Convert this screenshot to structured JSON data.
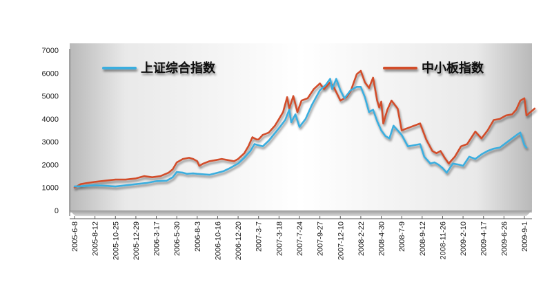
{
  "chart_data": {
    "type": "line",
    "ylim": [
      0,
      7000
    ],
    "y_ticks": [
      "0",
      "1000",
      "2000",
      "3000",
      "4000",
      "5000",
      "6000",
      "7000"
    ],
    "x_tick_labels": [
      "2005-6-8",
      "2005-8-12",
      "2005-10-25",
      "2005-12-29",
      "2006-3-17",
      "2006-5-30",
      "2006-8-3",
      "2006-10-16",
      "2006-12-20",
      "2007-3-7",
      "2007-3-18",
      "2007-7-24",
      "2007-9-27",
      "2007-12-10",
      "2008-2-22",
      "2008-4-30",
      "2008-7-9",
      "2008-9-12",
      "2008-11-26",
      "2009-2-10",
      "2009-4-17",
      "2009-6-26",
      "2009-9-1"
    ],
    "grid": false,
    "legend_position": "top",
    "series": [
      {
        "name": "上证综合指数",
        "color": "#3aaedf",
        "points": [
          [
            0,
            1050
          ],
          [
            0.3,
            1060
          ],
          [
            0.6,
            1080
          ],
          [
            1,
            1100
          ],
          [
            1.5,
            1080
          ],
          [
            2,
            1050
          ],
          [
            2.5,
            1100
          ],
          [
            3,
            1150
          ],
          [
            3.5,
            1200
          ],
          [
            4,
            1280
          ],
          [
            4.5,
            1300
          ],
          [
            4.8,
            1450
          ],
          [
            5,
            1680
          ],
          [
            5.3,
            1650
          ],
          [
            5.5,
            1600
          ],
          [
            5.8,
            1620
          ],
          [
            6,
            1600
          ],
          [
            6.3,
            1580
          ],
          [
            6.6,
            1560
          ],
          [
            7,
            1650
          ],
          [
            7.3,
            1720
          ],
          [
            7.6,
            1850
          ],
          [
            8,
            2050
          ],
          [
            8.3,
            2300
          ],
          [
            8.6,
            2600
          ],
          [
            8.8,
            2900
          ],
          [
            9,
            2850
          ],
          [
            9.2,
            2800
          ],
          [
            9.5,
            3050
          ],
          [
            10,
            3600
          ],
          [
            10.3,
            3950
          ],
          [
            10.5,
            4400
          ],
          [
            10.6,
            3850
          ],
          [
            10.8,
            4200
          ],
          [
            11,
            3650
          ],
          [
            11.3,
            4000
          ],
          [
            11.6,
            4600
          ],
          [
            12,
            5250
          ],
          [
            12.3,
            5500
          ],
          [
            12.5,
            5750
          ],
          [
            12.6,
            5300
          ],
          [
            12.8,
            5750
          ],
          [
            13,
            5250
          ],
          [
            13.2,
            4900
          ],
          [
            13.5,
            5250
          ],
          [
            13.8,
            5400
          ],
          [
            14,
            5400
          ],
          [
            14.2,
            4950
          ],
          [
            14.4,
            4300
          ],
          [
            14.6,
            4400
          ],
          [
            14.8,
            3900
          ],
          [
            15,
            3500
          ],
          [
            15.2,
            3250
          ],
          [
            15.4,
            3150
          ],
          [
            15.6,
            3700
          ],
          [
            15.8,
            3500
          ],
          [
            16,
            3300
          ],
          [
            16.3,
            2800
          ],
          [
            16.6,
            2850
          ],
          [
            16.9,
            2900
          ],
          [
            17.1,
            2350
          ],
          [
            17.4,
            2050
          ],
          [
            17.6,
            2100
          ],
          [
            17.8,
            2000
          ],
          [
            18,
            1850
          ],
          [
            18.2,
            1650
          ],
          [
            18.5,
            2050
          ],
          [
            18.8,
            2000
          ],
          [
            19,
            1950
          ],
          [
            19.3,
            2350
          ],
          [
            19.6,
            2250
          ],
          [
            19.9,
            2450
          ],
          [
            20.2,
            2600
          ],
          [
            20.5,
            2700
          ],
          [
            20.8,
            2750
          ],
          [
            21.1,
            2950
          ],
          [
            21.4,
            3150
          ],
          [
            21.7,
            3350
          ],
          [
            21.8,
            3400
          ],
          [
            22,
            2850
          ],
          [
            22.1,
            2750
          ]
        ]
      },
      {
        "name": "中小板指数",
        "color": "#d24d2c",
        "points": [
          [
            0,
            1000
          ],
          [
            0.3,
            1150
          ],
          [
            0.6,
            1200
          ],
          [
            1,
            1250
          ],
          [
            1.5,
            1300
          ],
          [
            2,
            1350
          ],
          [
            2.5,
            1350
          ],
          [
            3,
            1400
          ],
          [
            3.4,
            1500
          ],
          [
            3.8,
            1450
          ],
          [
            4.2,
            1500
          ],
          [
            4.6,
            1650
          ],
          [
            4.8,
            1800
          ],
          [
            5,
            2100
          ],
          [
            5.3,
            2250
          ],
          [
            5.6,
            2300
          ],
          [
            5.8,
            2250
          ],
          [
            6,
            2150
          ],
          [
            6.1,
            1950
          ],
          [
            6.3,
            2050
          ],
          [
            6.6,
            2150
          ],
          [
            6.9,
            2200
          ],
          [
            7.2,
            2250
          ],
          [
            7.5,
            2200
          ],
          [
            7.8,
            2150
          ],
          [
            8,
            2250
          ],
          [
            8.3,
            2500
          ],
          [
            8.5,
            2800
          ],
          [
            8.7,
            3200
          ],
          [
            8.9,
            3100
          ],
          [
            9,
            3100
          ],
          [
            9.2,
            3300
          ],
          [
            9.5,
            3400
          ],
          [
            9.8,
            3700
          ],
          [
            10,
            4000
          ],
          [
            10.2,
            4300
          ],
          [
            10.4,
            4950
          ],
          [
            10.5,
            4450
          ],
          [
            10.7,
            5000
          ],
          [
            10.9,
            4300
          ],
          [
            11.1,
            4800
          ],
          [
            11.4,
            4900
          ],
          [
            11.7,
            5300
          ],
          [
            12,
            5550
          ],
          [
            12.2,
            5300
          ],
          [
            12.5,
            5600
          ],
          [
            12.7,
            5350
          ],
          [
            13,
            4800
          ],
          [
            13.3,
            4950
          ],
          [
            13.5,
            5200
          ],
          [
            13.8,
            5950
          ],
          [
            14,
            6100
          ],
          [
            14.2,
            5600
          ],
          [
            14.4,
            5350
          ],
          [
            14.6,
            5800
          ],
          [
            14.8,
            4800
          ],
          [
            14.9,
            4500
          ],
          [
            15,
            4750
          ],
          [
            15.1,
            3800
          ],
          [
            15.3,
            4400
          ],
          [
            15.5,
            4800
          ],
          [
            15.8,
            4450
          ],
          [
            16,
            3500
          ],
          [
            16.3,
            3600
          ],
          [
            16.6,
            3700
          ],
          [
            16.9,
            3800
          ],
          [
            17.2,
            3100
          ],
          [
            17.5,
            2600
          ],
          [
            17.7,
            2500
          ],
          [
            17.9,
            2600
          ],
          [
            18.1,
            2300
          ],
          [
            18.3,
            2050
          ],
          [
            18.6,
            2350
          ],
          [
            18.9,
            2800
          ],
          [
            19.2,
            2900
          ],
          [
            19.6,
            3450
          ],
          [
            19.9,
            3150
          ],
          [
            20.2,
            3500
          ],
          [
            20.5,
            3950
          ],
          [
            20.8,
            4000
          ],
          [
            21.1,
            4150
          ],
          [
            21.4,
            4200
          ],
          [
            21.6,
            4400
          ],
          [
            21.8,
            4800
          ],
          [
            22,
            4900
          ],
          [
            22.1,
            4150
          ],
          [
            22.3,
            4300
          ],
          [
            22.5,
            4450
          ]
        ]
      }
    ]
  }
}
